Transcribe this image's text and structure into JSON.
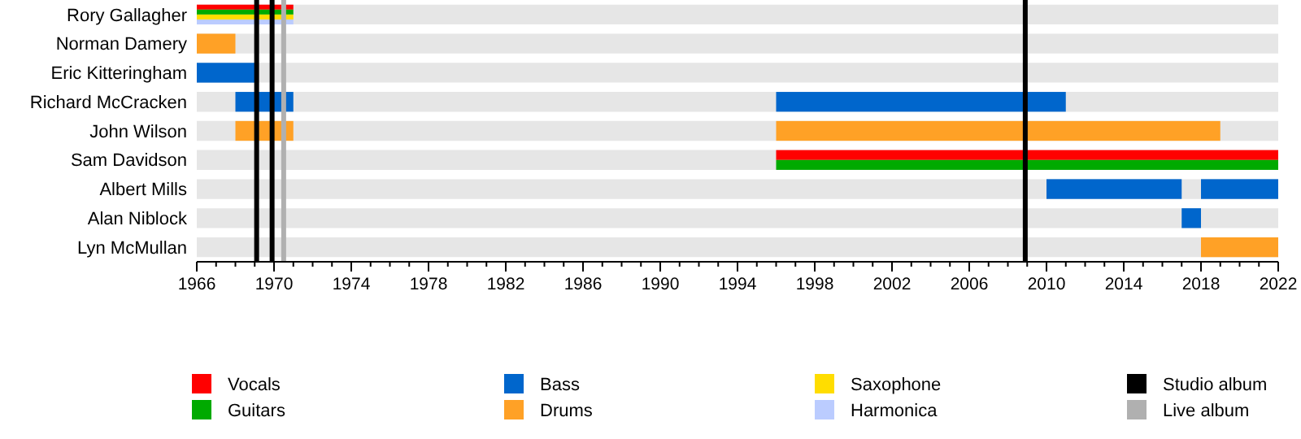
{
  "chart_data": {
    "type": "bar",
    "orientation": "horizontal",
    "legend": "bottom",
    "grid": "y",
    "categories": [
      "Rory Gallagher",
      "Norman Damery",
      "Eric Kitteringham",
      "Richard McCracken",
      "John Wilson",
      "Sam Davidson",
      "Albert Mills",
      "Alan Niblock",
      "Lyn McMullan"
    ],
    "series": [
      {
        "name": "Vocals",
        "color": "#ff0000",
        "base": [
          1966,
          null,
          null,
          null,
          null,
          1996,
          null,
          null,
          null
        ],
        "values": [
          5,
          null,
          null,
          null,
          null,
          26,
          null,
          null,
          null
        ]
      },
      {
        "name": "Guitars",
        "color": "#00aa00",
        "base": [
          1966,
          null,
          null,
          null,
          null,
          1996,
          null,
          null,
          null
        ],
        "values": [
          5,
          null,
          null,
          null,
          null,
          26,
          null,
          null,
          null
        ]
      },
      {
        "name": "Bass",
        "color": "#0066cc",
        "base": [
          null,
          null,
          1966,
          1968,
          null,
          null,
          2010,
          2017,
          null
        ],
        "values": [
          null,
          null,
          3,
          3,
          null,
          null,
          7,
          1,
          null
        ]
      },
      {
        "name": "Drums",
        "color": "#ffa126",
        "base": [
          null,
          1966,
          null,
          null,
          1968,
          null,
          null,
          null,
          2018
        ],
        "values": [
          null,
          2,
          null,
          null,
          3,
          null,
          null,
          null,
          4
        ]
      },
      {
        "name": "Saxophone",
        "color": "#ffdd00",
        "base": [
          1966,
          null,
          null,
          null,
          null,
          null,
          null,
          null,
          null
        ],
        "values": [
          5,
          null,
          null,
          null,
          null,
          null,
          null,
          null,
          null
        ]
      },
      {
        "name": "Harmonica",
        "color": "#bbccff",
        "base": [
          1966,
          null,
          null,
          null,
          null,
          null,
          null,
          null,
          null
        ],
        "values": [
          5,
          null,
          null,
          null,
          null,
          null,
          null,
          null,
          null
        ]
      },
      {
        "color": "#0066cc",
        "base": [
          null,
          null,
          null,
          1996,
          null,
          null,
          2018,
          null,
          null
        ],
        "values": [
          null,
          null,
          null,
          15,
          null,
          null,
          4,
          null,
          null
        ]
      },
      {
        "color": "#ffa126",
        "base": [
          null,
          null,
          null,
          null,
          1996,
          null,
          null,
          null,
          null
        ],
        "values": [
          null,
          null,
          null,
          null,
          23,
          null,
          null,
          null,
          null
        ]
      }
    ],
    "ref_lines": [
      {
        "axis": "x",
        "value": 1969.1,
        "label": "Studio album",
        "color": "#000000"
      },
      {
        "axis": "x",
        "value": 1969.9,
        "color": "#000000"
      },
      {
        "axis": "x",
        "value": 2008.9,
        "color": "#000000"
      },
      {
        "axis": "x",
        "value": 1970.5,
        "label": "Live album",
        "color": "#b0b0b0"
      }
    ],
    "xlim": [
      1966,
      2022
    ],
    "xticks": [
      1966,
      {
        "value": 1967,
        "label": null
      },
      {
        "value": 1968,
        "label": null
      },
      {
        "value": 1969,
        "label": null
      },
      1970,
      {
        "value": 1971,
        "label": null
      },
      {
        "value": 1972,
        "label": null
      },
      {
        "value": 1973,
        "label": null
      },
      1974,
      {
        "value": 1975,
        "label": null
      },
      {
        "value": 1976,
        "label": null
      },
      {
        "value": 1977,
        "label": null
      },
      1978,
      {
        "value": 1979,
        "label": null
      },
      {
        "value": 1980,
        "label": null
      },
      {
        "value": 1981,
        "label": null
      },
      1982,
      {
        "value": 1983,
        "label": null
      },
      {
        "value": 1984,
        "label": null
      },
      {
        "value": 1985,
        "label": null
      },
      1986,
      {
        "value": 1987,
        "label": null
      },
      {
        "value": 1988,
        "label": null
      },
      {
        "value": 1989,
        "label": null
      },
      1990,
      {
        "value": 1991,
        "label": null
      },
      {
        "value": 1992,
        "label": null
      },
      {
        "value": 1993,
        "label": null
      },
      1994,
      {
        "value": 1995,
        "label": null
      },
      {
        "value": 1996,
        "label": null
      },
      {
        "value": 1997,
        "label": null
      },
      1998,
      {
        "value": 1999,
        "label": null
      },
      {
        "value": 2000,
        "label": null
      },
      {
        "value": 2001,
        "label": null
      },
      2002,
      {
        "value": 2003,
        "label": null
      },
      {
        "value": 2004,
        "label": null
      },
      {
        "value": 2005,
        "label": null
      },
      2006,
      {
        "value": 2007,
        "label": null
      },
      {
        "value": 2008,
        "label": null
      },
      {
        "value": 2009,
        "label": null
      },
      2010,
      {
        "value": 2011,
        "label": null
      },
      {
        "value": 2012,
        "label": null
      },
      {
        "value": 2013,
        "label": null
      },
      2014,
      {
        "value": 2015,
        "label": null
      },
      {
        "value": 2016,
        "label": null
      },
      {
        "value": 2017,
        "label": null
      },
      2018,
      {
        "value": 2019,
        "label": null
      },
      {
        "value": 2020,
        "label": null
      },
      {
        "value": 2021,
        "label": null
      },
      2022
    ]
  }
}
